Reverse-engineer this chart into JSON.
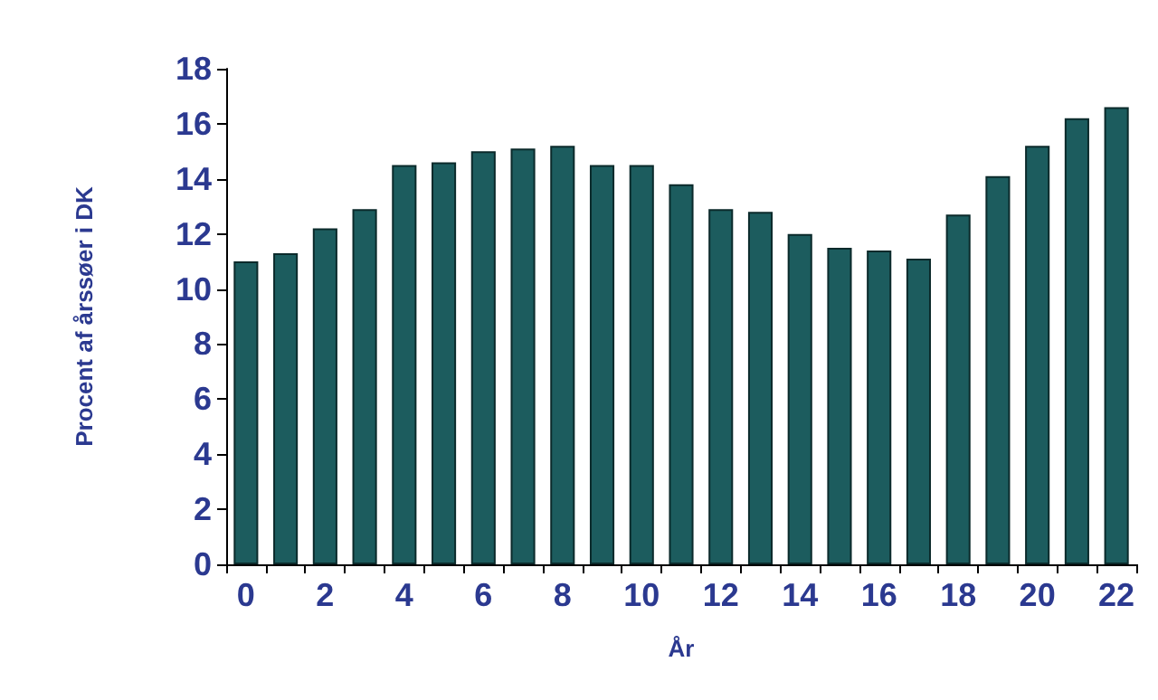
{
  "chart_data": {
    "type": "bar",
    "xlabel": "År",
    "ylabel": "Procent af årssøer i DK",
    "categories": [
      "0",
      null,
      "2",
      null,
      "4",
      null,
      "6",
      null,
      "8",
      null,
      "10",
      null,
      "12",
      null,
      "14",
      null,
      "16",
      null,
      "18",
      null,
      "20",
      null,
      "22"
    ],
    "values": [
      11.0,
      11.3,
      12.2,
      12.9,
      14.5,
      14.6,
      15.0,
      15.1,
      15.2,
      14.5,
      14.5,
      13.8,
      12.9,
      12.8,
      12.0,
      11.5,
      11.4,
      11.1,
      12.7,
      14.1,
      15.2,
      16.2,
      16.6
    ],
    "color": "#1c5c5e",
    "ylim": [
      0,
      18
    ],
    "yticks": [
      0,
      2,
      4,
      6,
      8,
      10,
      12,
      14,
      16,
      18
    ],
    "grid": false
  }
}
